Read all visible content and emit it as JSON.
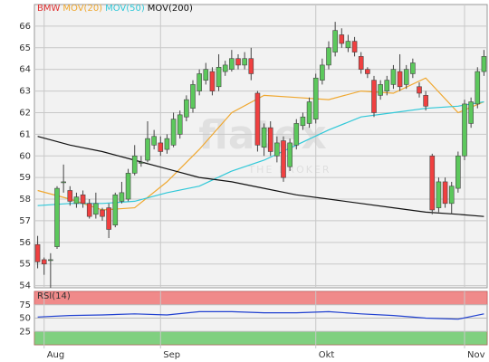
{
  "chart_data": {
    "type": "candlestick",
    "name": "BMW",
    "name_color": "#e03030",
    "categories": [
      null,
      "Aug",
      null,
      null,
      null,
      null,
      null,
      null,
      null,
      null,
      null,
      null,
      null,
      null,
      null,
      null,
      null,
      null,
      null,
      "Sep",
      null,
      null,
      null,
      null,
      null,
      null,
      null,
      null,
      null,
      null,
      null,
      null,
      null,
      null,
      null,
      null,
      null,
      null,
      null,
      null,
      null,
      null,
      null,
      "Okt",
      null,
      null,
      null,
      null,
      null,
      null,
      null,
      null,
      null,
      null,
      null,
      null,
      null,
      null,
      null,
      null,
      null,
      null,
      null,
      null,
      null,
      null,
      "Nov",
      null,
      null,
      null
    ],
    "open": [
      55.9,
      55.2,
      55.2,
      55.8,
      58.8,
      58.4,
      57.8,
      58.2,
      57.8,
      57.3,
      57.5,
      57.6,
      56.8,
      57.9,
      58.0,
      59.2,
      59.7,
      59.8,
      60.5,
      60.6,
      60.3,
      60.5,
      61.0,
      61.8,
      62.2,
      63.0,
      63.5,
      63.9,
      63.2,
      63.9,
      64.0,
      64.5,
      64.2,
      64.5,
      62.9,
      60.4,
      61.3,
      60.0,
      60.7,
      59.5,
      60.5,
      61.4,
      61.5,
      61.7,
      63.5,
      64.2,
      64.8,
      65.6,
      65.0,
      65.3,
      64.6,
      64.0,
      63.5,
      62.8,
      63.0,
      63.3,
      63.9,
      63.3,
      63.8,
      63.2,
      62.8,
      60.0,
      57.6,
      58.8,
      57.8,
      58.5,
      60.0,
      61.5,
      62.4,
      63.9
    ],
    "high": [
      56.3,
      55.3,
      55.5,
      58.6,
      59.6,
      58.6,
      58.3,
      58.4,
      58.0,
      58.3,
      57.6,
      57.8,
      58.3,
      58.8,
      59.4,
      60.5,
      60.0,
      61.6,
      61.2,
      60.9,
      61.0,
      62.0,
      62.1,
      62.8,
      63.5,
      64.0,
      64.3,
      64.1,
      64.7,
      64.4,
      64.9,
      64.7,
      64.8,
      65.0,
      63.0,
      61.5,
      61.6,
      60.9,
      60.9,
      60.8,
      61.7,
      62.0,
      62.7,
      63.8,
      64.5,
      65.3,
      66.2,
      65.9,
      65.6,
      65.5,
      64.8,
      64.1,
      63.7,
      63.5,
      63.7,
      64.2,
      64.7,
      64.2,
      64.5,
      63.4,
      63.0,
      60.1,
      59.0,
      59.0,
      58.8,
      60.2,
      62.6,
      62.7,
      64.1,
      64.9
    ],
    "low": [
      54.8,
      54.5,
      53.9,
      55.7,
      58.3,
      57.7,
      57.6,
      57.6,
      57.1,
      57.1,
      57.0,
      56.2,
      56.7,
      57.8,
      57.9,
      59.1,
      59.5,
      59.7,
      60.3,
      60.0,
      60.1,
      60.4,
      60.8,
      61.6,
      62.0,
      62.8,
      63.3,
      62.8,
      63.0,
      63.7,
      63.9,
      64.0,
      64.0,
      63.5,
      60.2,
      60.0,
      60.0,
      59.7,
      58.8,
      59.3,
      60.3,
      61.2,
      61.3,
      61.5,
      63.3,
      64.0,
      64.6,
      65.0,
      64.8,
      64.6,
      63.8,
      63.6,
      61.8,
      62.6,
      62.8,
      63.1,
      63.0,
      63.1,
      63.6,
      62.7,
      62.1,
      57.3,
      57.4,
      57.6,
      57.3,
      58.3,
      59.8,
      61.3,
      62.2,
      63.7
    ],
    "close": [
      55.1,
      55.0,
      55.2,
      58.5,
      58.8,
      57.9,
      58.1,
      57.8,
      57.2,
      57.8,
      57.2,
      56.6,
      58.2,
      58.3,
      59.2,
      60.0,
      59.7,
      60.8,
      60.9,
      60.2,
      60.8,
      61.7,
      61.9,
      62.6,
      63.3,
      63.8,
      64.0,
      63.0,
      64.1,
      64.2,
      64.5,
      64.2,
      64.5,
      63.8,
      60.5,
      61.3,
      60.2,
      60.6,
      59.0,
      60.6,
      61.5,
      61.8,
      62.5,
      63.6,
      64.2,
      65.0,
      65.8,
      65.2,
      65.3,
      64.8,
      64.0,
      63.8,
      62.0,
      63.3,
      63.5,
      64.0,
      63.2,
      64.0,
      64.3,
      62.9,
      62.3,
      57.5,
      58.8,
      57.8,
      58.6,
      60.0,
      62.4,
      62.5,
      63.9,
      64.6
    ],
    "up_color": "#5cc85c",
    "down_color": "#f04040",
    "ylim": [
      53.9,
      67.0
    ],
    "yticks": [
      54,
      55,
      56,
      57,
      58,
      59,
      60,
      61,
      62,
      63,
      64,
      65,
      66
    ],
    "grid": true,
    "overlays": [
      {
        "name": "MOV(20)",
        "color": "#f0a830",
        "x": [
          0,
          5,
          10,
          15,
          20,
          25,
          30,
          35,
          40,
          45,
          50,
          55,
          60,
          65,
          69
        ],
        "values": [
          58.4,
          58.0,
          57.5,
          57.6,
          58.8,
          60.3,
          62.0,
          62.8,
          62.7,
          62.6,
          63.0,
          62.9,
          63.6,
          62.0,
          62.5
        ]
      },
      {
        "name": "MOV(50)",
        "color": "#30c8d8",
        "x": [
          0,
          5,
          10,
          15,
          20,
          25,
          30,
          35,
          40,
          45,
          50,
          55,
          60,
          65,
          69
        ],
        "values": [
          57.7,
          57.8,
          57.8,
          57.9,
          58.3,
          58.6,
          59.3,
          59.8,
          60.5,
          61.2,
          61.8,
          62.0,
          62.2,
          62.3,
          62.5
        ]
      },
      {
        "name": "MOV(200)",
        "color": "#111111",
        "x": [
          0,
          5,
          10,
          15,
          20,
          25,
          30,
          35,
          40,
          45,
          50,
          55,
          60,
          65,
          69
        ],
        "values": [
          60.9,
          60.5,
          60.2,
          59.8,
          59.4,
          59.0,
          58.8,
          58.5,
          58.2,
          58.0,
          57.8,
          57.6,
          57.4,
          57.3,
          57.2
        ]
      }
    ],
    "watermark": "flatex",
    "watermark_sub": "THE BROKER",
    "rsi": {
      "title": "RSI(14)",
      "color": "#2040d0",
      "ylim": [
        0,
        100
      ],
      "yticks": [
        25,
        50,
        75
      ],
      "upper_band": [
        75,
        100
      ],
      "upper_color": "#f08a8a",
      "lower_band": [
        0,
        25
      ],
      "lower_color": "#80d080",
      "x": [
        0,
        5,
        10,
        15,
        20,
        25,
        30,
        35,
        40,
        45,
        50,
        55,
        60,
        65,
        69
      ],
      "values": [
        52,
        55,
        56,
        58,
        56,
        62,
        62,
        60,
        60,
        62,
        58,
        55,
        50,
        48,
        58
      ]
    }
  }
}
